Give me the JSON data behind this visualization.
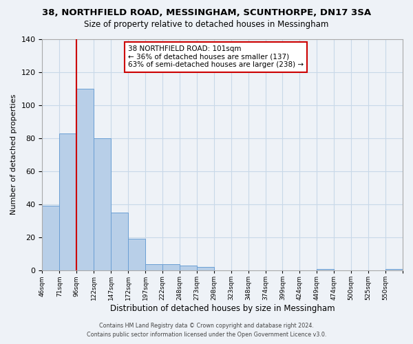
{
  "title": "38, NORTHFIELD ROAD, MESSINGHAM, SCUNTHORPE, DN17 3SA",
  "subtitle": "Size of property relative to detached houses in Messingham",
  "xlabel": "Distribution of detached houses by size in Messingham",
  "ylabel": "Number of detached properties",
  "bar_heights": [
    39,
    83,
    110,
    80,
    35,
    19,
    4,
    4,
    3,
    2,
    0,
    0,
    0,
    0,
    0,
    0,
    1,
    0,
    0,
    0,
    1
  ],
  "bin_labels": [
    "46sqm",
    "71sqm",
    "96sqm",
    "122sqm",
    "147sqm",
    "172sqm",
    "197sqm",
    "222sqm",
    "248sqm",
    "273sqm",
    "298sqm",
    "323sqm",
    "348sqm",
    "374sqm",
    "399sqm",
    "424sqm",
    "449sqm",
    "474sqm",
    "500sqm",
    "525sqm",
    "550sqm"
  ],
  "bar_color": "#b8cfe8",
  "bar_edge_color": "#6a9fd4",
  "grid_color": "#c8d8e8",
  "background_color": "#eef2f7",
  "vline_x": 2.0,
  "vline_color": "#cc0000",
  "annotation_title": "38 NORTHFIELD ROAD: 101sqm",
  "annotation_line1": "← 36% of detached houses are smaller (137)",
  "annotation_line2": "63% of semi-detached houses are larger (238) →",
  "annotation_box_color": "#ffffff",
  "annotation_box_edge": "#cc0000",
  "ylim": [
    0,
    140
  ],
  "yticks": [
    0,
    20,
    40,
    60,
    80,
    100,
    120,
    140
  ],
  "footer_line1": "Contains HM Land Registry data © Crown copyright and database right 2024.",
  "footer_line2": "Contains public sector information licensed under the Open Government Licence v3.0."
}
